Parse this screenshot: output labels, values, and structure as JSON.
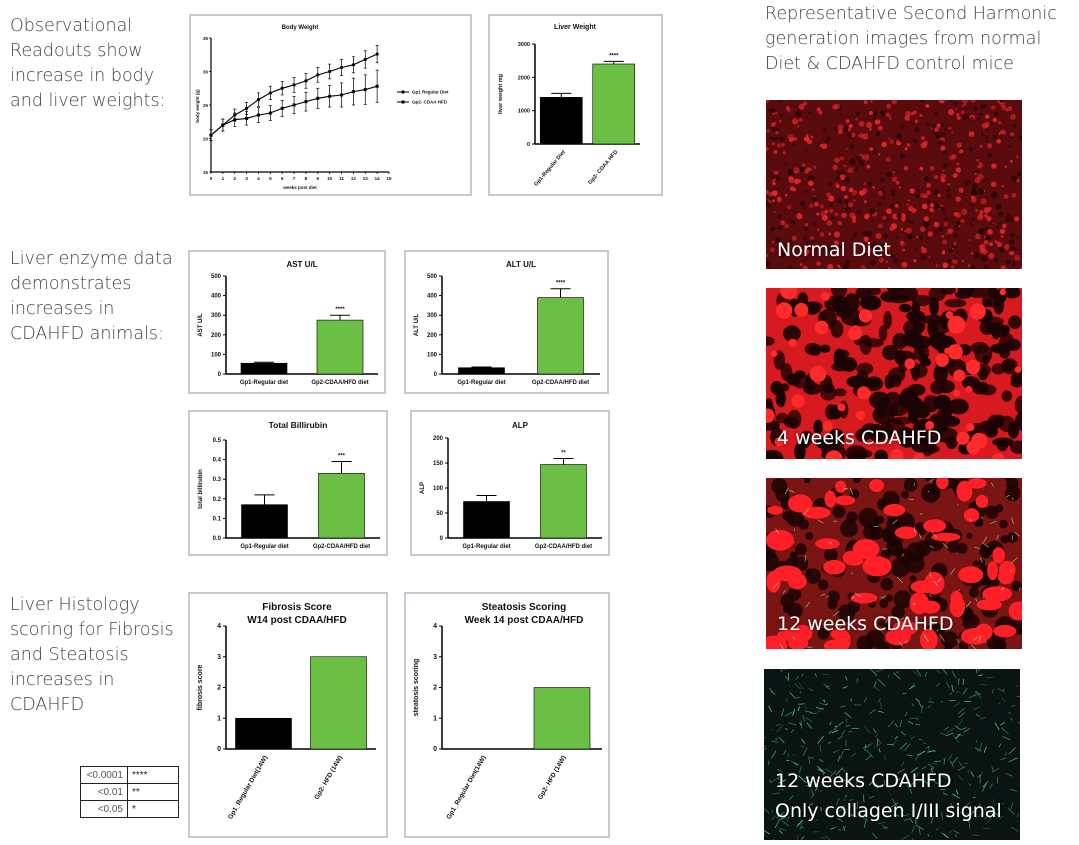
{
  "captions": {
    "observational": "Observational Readouts show increase in body and liver weights:",
    "enzyme": "Liver enzyme data demonstrates increases in CDAHFD animals:",
    "histology": "Liver Histology scoring for Fibrosis and Steatosis increases in CDAHFD",
    "shg": "Representative Second Harmonic generation images from normal Diet & CDAHFD control mice"
  },
  "colors": {
    "black_bar": "#000000",
    "green_bar": "#6bbf44",
    "panel_border": "#c7c8d4",
    "shg_red": "#e3191c",
    "collagen": "#5fd0a0"
  },
  "images": [
    {
      "label": "Normal Diet"
    },
    {
      "label": "4 weeks CDAHFD"
    },
    {
      "label": "12 weeks CDAHFD"
    },
    {
      "label": "12 weeks CDAHFD",
      "label2": "Only collagen I/III signal"
    }
  ],
  "significance_table": [
    {
      "p": "<0.0001",
      "mark": "****"
    },
    {
      "p": "<0.01",
      "mark": "**"
    },
    {
      "p": "<0.05",
      "mark": "*"
    }
  ],
  "chart_data": [
    {
      "id": "body",
      "type": "line",
      "title": "Body Weight",
      "xlabel": "weeks post diet",
      "ylabel": "body weight (g)",
      "xlim": [
        0,
        15
      ],
      "ylim": [
        15,
        35
      ],
      "xticks": [
        "0",
        "1",
        "2",
        "3",
        "4",
        "5",
        "6",
        "7",
        "8",
        "9",
        "10",
        "11",
        "12",
        "13",
        "14",
        "15"
      ],
      "yticks": [
        "15",
        "20",
        "25",
        "30",
        "35"
      ],
      "series": [
        {
          "name": "Gp1 Regular Diet",
          "x": [
            0,
            1,
            2,
            3,
            4,
            5,
            6,
            7,
            8,
            9,
            10,
            11,
            12,
            13,
            14
          ],
          "y": [
            20.5,
            22,
            23.5,
            24.5,
            25.8,
            26.8,
            27.5,
            28,
            28.6,
            29.5,
            30,
            30.6,
            31,
            31.8,
            32.6
          ],
          "err": [
            0.8,
            0.9,
            0.9,
            0.9,
            1,
            1,
            1,
            1.1,
            1.1,
            1.1,
            1.1,
            1.2,
            1.2,
            1.3,
            1.3
          ]
        },
        {
          "name": "Gp2- CDAA HFD",
          "x": [
            0,
            1,
            2,
            3,
            4,
            5,
            6,
            7,
            8,
            9,
            10,
            11,
            12,
            13,
            14
          ],
          "y": [
            20.5,
            22,
            22.8,
            23,
            23.5,
            23.8,
            24.5,
            25,
            25.5,
            26,
            26.3,
            26.5,
            27,
            27.3,
            27.8
          ],
          "err": [
            0.8,
            0.9,
            1,
            1,
            1.1,
            1.1,
            1.2,
            1.3,
            1.4,
            1.5,
            1.6,
            1.8,
            2,
            2.2,
            2.4
          ]
        }
      ]
    },
    {
      "id": "liver",
      "type": "bar",
      "title": "Liver Weight",
      "ylabel": "liver weight mg",
      "ylim": [
        0,
        3000
      ],
      "yticks": [
        "0",
        "1000",
        "2000",
        "3000"
      ],
      "categories": [
        "Gp1-Regular Diet",
        "Gp2- CDAA HFD"
      ],
      "values": [
        1400,
        2400
      ],
      "errors": [
        120,
        80
      ],
      "significance": [
        "",
        "****"
      ]
    },
    {
      "id": "ast",
      "type": "bar",
      "title": "AST U/L",
      "ylabel": "AST U/L",
      "ylim": [
        0,
        500
      ],
      "yticks": [
        "0",
        "100",
        "200",
        "300",
        "400",
        "500"
      ],
      "categories": [
        "Gp1-Regular diet",
        "Gp2-CDAA/HFD diet"
      ],
      "values": [
        55,
        275
      ],
      "errors": [
        5,
        25
      ],
      "significance": [
        "",
        "****"
      ]
    },
    {
      "id": "alt",
      "type": "bar",
      "title": "ALT U/L",
      "ylabel": "ALT U/L",
      "ylim": [
        0,
        500
      ],
      "yticks": [
        "0",
        "100",
        "200",
        "300",
        "400",
        "500"
      ],
      "categories": [
        "Gp1-Regular diet",
        "Gp2-CDAA/HFD diet"
      ],
      "values": [
        32,
        390
      ],
      "errors": [
        4,
        45
      ],
      "significance": [
        "",
        "****"
      ]
    },
    {
      "id": "bili",
      "type": "bar",
      "title": "Total Billirubin",
      "ylabel": "total billirubin",
      "ylim": [
        0,
        0.5
      ],
      "yticks": [
        "0.0",
        "0.1",
        "0.2",
        "0.3",
        "0.4",
        "0.5"
      ],
      "categories": [
        "Gp1-Regular diet",
        "Gp2-CDAA/HFD diet"
      ],
      "values": [
        0.17,
        0.33
      ],
      "errors": [
        0.05,
        0.06
      ],
      "significance": [
        "",
        "***"
      ]
    },
    {
      "id": "alp",
      "type": "bar",
      "title": "ALP",
      "ylabel": "ALP",
      "ylim": [
        0,
        200
      ],
      "yticks": [
        "0",
        "50",
        "100",
        "150",
        "200"
      ],
      "categories": [
        "Gp1-Regular diet",
        "Gp2-CDAA/HFD diet"
      ],
      "values": [
        73,
        147
      ],
      "errors": [
        12,
        12
      ],
      "significance": [
        "",
        "**"
      ]
    },
    {
      "id": "fibrosis",
      "type": "bar",
      "title": "Fibrosis Score",
      "title2": "W14 post CDAA/HFD",
      "ylabel": "fibrosis score",
      "ylim": [
        0,
        4
      ],
      "yticks": [
        "0",
        "1",
        "2",
        "3",
        "4"
      ],
      "categories": [
        "Gp1_Regular Diet(14W)",
        "Gp2- HFD (14W)"
      ],
      "values": [
        1,
        3
      ],
      "errors": [
        0,
        0
      ],
      "significance": [
        "",
        ""
      ]
    },
    {
      "id": "steatosis",
      "type": "bar",
      "title": "Steatosis Scoring",
      "title2": "Week 14 post CDAA/HFD",
      "ylabel": "steatosis scoring",
      "ylim": [
        0,
        4
      ],
      "yticks": [
        "0",
        "1",
        "2",
        "3",
        "4"
      ],
      "categories": [
        "Gp1_Regular Diet(14W)",
        "Gp2- HFD (14W)"
      ],
      "values": [
        0,
        2
      ],
      "errors": [
        0,
        0
      ],
      "significance": [
        "",
        ""
      ]
    }
  ]
}
